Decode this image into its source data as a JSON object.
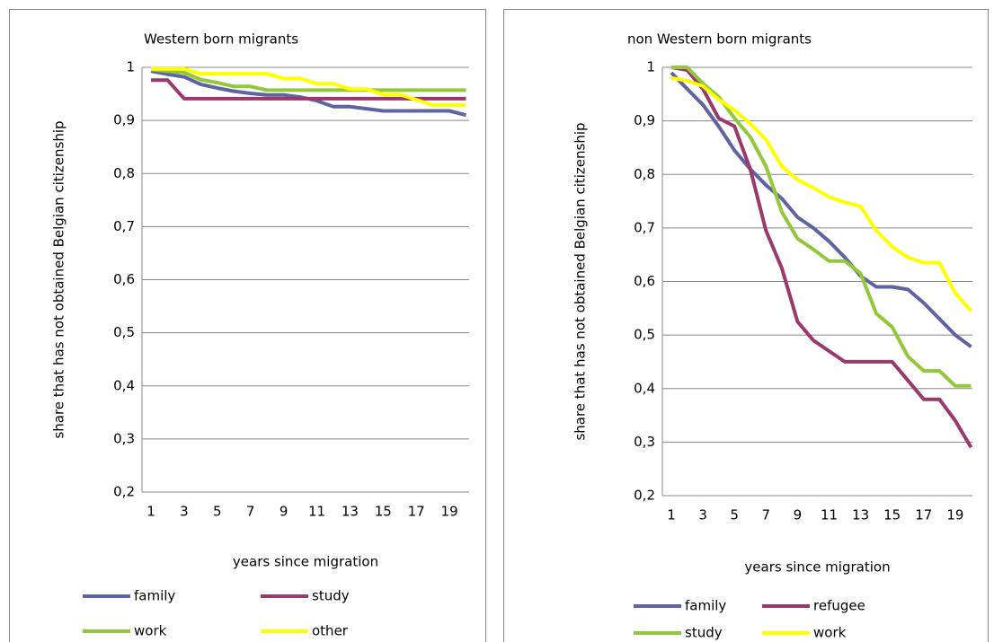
{
  "chart_data": [
    {
      "type": "line",
      "title": "Western born migrants",
      "x_label": "years since migration",
      "y_label": "share that has not obtained Belgian citizenship",
      "categories": [
        1,
        null,
        3,
        null,
        5,
        null,
        7,
        null,
        9,
        null,
        11,
        null,
        13,
        null,
        15,
        null,
        17,
        null,
        19,
        null
      ],
      "ylim": [
        0.2,
        1
      ],
      "yticks": [
        {
          "value": 0.2,
          "label": "0,2"
        },
        {
          "value": 0.3,
          "label": "0,3"
        },
        {
          "value": 0.4,
          "label": "0,4"
        },
        {
          "value": 0.5,
          "label": "0,5"
        },
        {
          "value": 0.6,
          "label": "0,6"
        },
        {
          "value": 0.7,
          "label": "0,7"
        },
        {
          "value": 0.8,
          "label": "0,8"
        },
        {
          "value": 0.9,
          "label": "0,9"
        },
        1
      ],
      "grid": true,
      "legend": "bottom",
      "series": [
        {
          "name": "family",
          "color": "#5f64a0",
          "values": [
            0.993,
            0.987,
            0.982,
            0.968,
            0.961,
            0.955,
            0.951,
            0.948,
            0.948,
            0.944,
            0.937,
            0.926,
            0.926,
            0.922,
            0.918,
            0.918,
            0.918,
            0.918,
            0.918,
            0.91
          ]
        },
        {
          "name": "study",
          "color": "#983a6b",
          "values": [
            0.976,
            0.976,
            0.941,
            0.941,
            0.941,
            0.941,
            0.941,
            0.941,
            0.941,
            0.941,
            0.941,
            0.941,
            0.941,
            0.941,
            0.941,
            0.941,
            0.941,
            0.941,
            0.941,
            0.941
          ]
        },
        {
          "name": "work",
          "color": "#93c83a",
          "values": [
            0.996,
            0.993,
            0.99,
            0.977,
            0.971,
            0.964,
            0.964,
            0.957,
            0.957,
            0.957,
            0.957,
            0.957,
            0.957,
            0.957,
            0.957,
            0.957,
            0.957,
            0.957,
            0.957,
            0.957
          ]
        },
        {
          "name": "other",
          "color": "#ffff00",
          "values": [
            0.997,
            0.997,
            0.997,
            0.988,
            0.988,
            0.988,
            0.988,
            0.988,
            0.979,
            0.979,
            0.969,
            0.969,
            0.959,
            0.959,
            0.949,
            0.949,
            0.939,
            0.929,
            0.929,
            0.929
          ]
        }
      ]
    },
    {
      "type": "line",
      "title": "non Western born migrants",
      "x_label": "years since migration",
      "y_label": "share that has not obtained Belgian citizenship",
      "categories": [
        1,
        null,
        3,
        null,
        5,
        null,
        7,
        null,
        9,
        null,
        11,
        null,
        13,
        null,
        15,
        null,
        17,
        null,
        19,
        null
      ],
      "ylim": [
        0.2,
        1
      ],
      "yticks": [
        {
          "value": 0.2,
          "label": "0,2"
        },
        {
          "value": 0.3,
          "label": "0,3"
        },
        {
          "value": 0.4,
          "label": "0,4"
        },
        {
          "value": 0.5,
          "label": "0,5"
        },
        {
          "value": 0.6,
          "label": "0,6"
        },
        {
          "value": 0.7,
          "label": "0,7"
        },
        {
          "value": 0.8,
          "label": "0,8"
        },
        {
          "value": 0.9,
          "label": "0,9"
        },
        1
      ],
      "grid": true,
      "legend": "bottom",
      "series": [
        {
          "name": "family",
          "color": "#5f64a0",
          "values": [
            0.99,
            0.96,
            0.93,
            0.89,
            0.845,
            0.81,
            0.78,
            0.755,
            0.72,
            0.7,
            0.675,
            0.645,
            0.61,
            0.59,
            0.59,
            0.585,
            0.56,
            0.53,
            0.5,
            0.478
          ]
        },
        {
          "name": "refugee",
          "color": "#983a6b",
          "values": [
            1.0,
            0.995,
            0.96,
            0.905,
            0.89,
            0.81,
            0.695,
            0.625,
            0.525,
            0.49,
            0.47,
            0.45,
            0.45,
            0.45,
            0.45,
            0.415,
            0.38,
            0.38,
            0.34,
            0.29
          ]
        },
        {
          "name": "study",
          "color": "#93c83a",
          "values": [
            1.0,
            1.0,
            0.97,
            0.945,
            0.905,
            0.87,
            0.815,
            0.73,
            0.68,
            0.66,
            0.638,
            0.638,
            0.615,
            0.54,
            0.515,
            0.46,
            0.433,
            0.433,
            0.405,
            0.405
          ]
        },
        {
          "name": "work",
          "color": "#ffff00",
          "values": [
            0.98,
            0.975,
            0.965,
            0.94,
            0.92,
            0.895,
            0.865,
            0.815,
            0.79,
            0.775,
            0.758,
            0.748,
            0.74,
            0.695,
            0.665,
            0.645,
            0.635,
            0.635,
            0.578,
            0.545
          ]
        }
      ]
    }
  ]
}
